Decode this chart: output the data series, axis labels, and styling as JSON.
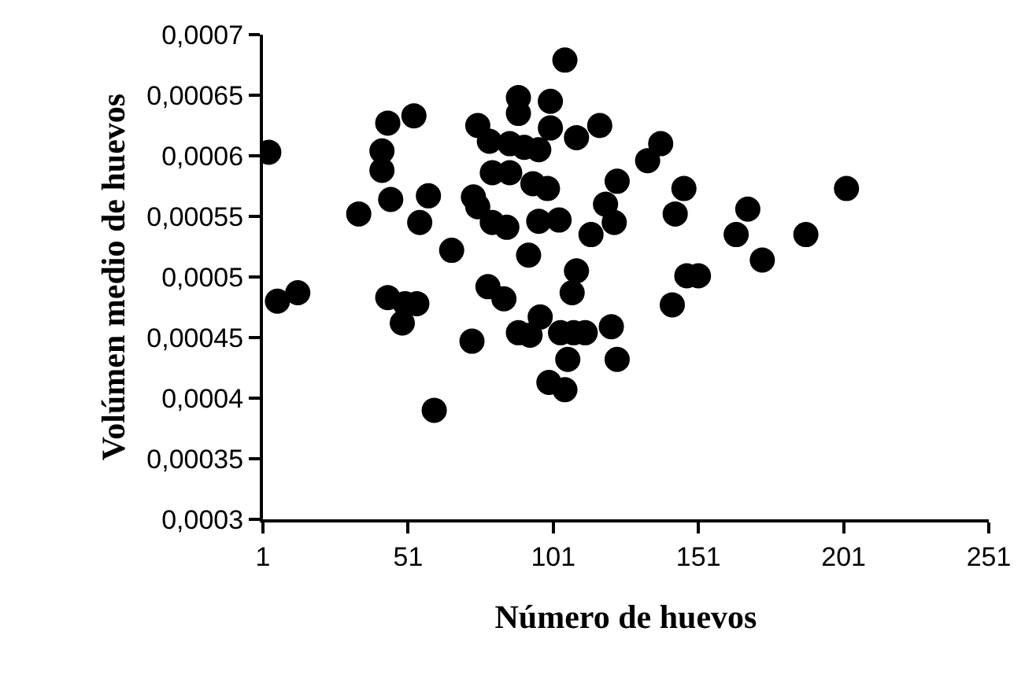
{
  "chart_data": {
    "type": "scatter",
    "xlabel": "Número de huevos",
    "ylabel": "Volúmen medio de huevos",
    "xlim": [
      1,
      251
    ],
    "xticks": [
      1,
      51,
      101,
      151,
      201,
      251
    ],
    "ylim": [
      0.0003,
      0.0007
    ],
    "yticks": [
      {
        "value": 0.0003,
        "label": "0,0003"
      },
      {
        "value": 0.00035,
        "label": "0,00035"
      },
      {
        "value": 0.0004,
        "label": "0,0004"
      },
      {
        "value": 0.00045,
        "label": "0,00045"
      },
      {
        "value": 0.0005,
        "label": "0,0005"
      },
      {
        "value": 0.00055,
        "label": "0,00055"
      },
      {
        "value": 0.0006,
        "label": "0,0006"
      },
      {
        "value": 0.00065,
        "label": "0,00065"
      },
      {
        "value": 0.0007,
        "label": "0,0007"
      }
    ],
    "marker": "circle",
    "series": [
      {
        "color": "#000000",
        "x": [
          3,
          6,
          13,
          34,
          44,
          53,
          42,
          42,
          45,
          58,
          55,
          66,
          44,
          50,
          54,
          49,
          60,
          73,
          75,
          79,
          80,
          86,
          86,
          91,
          96,
          89,
          89,
          100,
          100,
          105,
          109,
          117,
          73.5,
          75,
          80,
          85,
          94,
          99,
          96,
          103,
          92.5,
          114,
          119,
          123,
          122,
          78.5,
          84,
          109,
          107.5,
          89,
          93,
          96.5,
          103.5,
          108,
          112,
          121,
          106,
          123,
          99.5,
          105,
          138,
          133.5,
          146,
          143,
          168,
          164,
          188,
          202,
          173,
          147,
          151,
          142
        ],
        "values": [
          0.000603,
          0.00048,
          0.000487,
          0.000552,
          0.000627,
          0.000633,
          0.000604,
          0.000588,
          0.000564,
          0.000567,
          0.000545,
          0.000522,
          0.000483,
          0.000478,
          0.000478,
          0.000462,
          0.00039,
          0.000447,
          0.000625,
          0.000612,
          0.000586,
          0.000586,
          0.00061,
          0.000607,
          0.000605,
          0.000648,
          0.000635,
          0.000645,
          0.000623,
          0.000679,
          0.000615,
          0.000625,
          0.000566,
          0.000558,
          0.000545,
          0.000541,
          0.000577,
          0.000573,
          0.000546,
          0.000547,
          0.000518,
          0.000535,
          0.00056,
          0.000579,
          0.000545,
          0.000492,
          0.000482,
          0.000505,
          0.000487,
          0.000454,
          0.000452,
          0.000467,
          0.000454,
          0.000454,
          0.000454,
          0.000459,
          0.000432,
          0.000432,
          0.000413,
          0.000407,
          0.00061,
          0.000596,
          0.000573,
          0.000552,
          0.000556,
          0.000535,
          0.000535,
          0.000573,
          0.000514,
          0.000501,
          0.000501,
          0.000477
        ]
      }
    ]
  }
}
